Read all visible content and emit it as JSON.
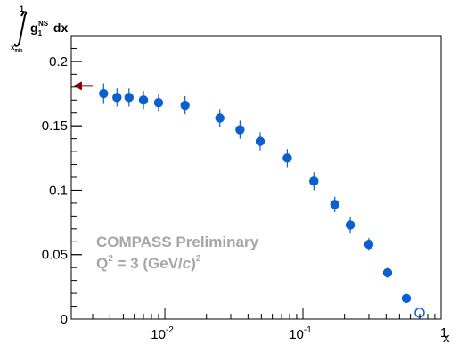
{
  "chart_data": {
    "type": "scatter",
    "x_scale": "log",
    "xlim": [
      0.0021,
      1
    ],
    "ylim": [
      0,
      0.22
    ],
    "x_ticks": [
      {
        "value": 0.01,
        "base": "10",
        "exp": "-2"
      },
      {
        "value": 0.1,
        "base": "10",
        "exp": "-1"
      },
      {
        "value": 1,
        "base": "",
        "exp": "1"
      }
    ],
    "y_ticks": [
      {
        "value": 0,
        "label": "0"
      },
      {
        "value": 0.05,
        "label": "0.05"
      },
      {
        "value": 0.1,
        "label": "0.1"
      },
      {
        "value": 0.15,
        "label": "0.15"
      },
      {
        "value": 0.2,
        "label": "0.2"
      }
    ],
    "xlabel": "x",
    "ylabel": {
      "integral_upper": "1",
      "integral_lower_base": "x",
      "integral_lower_sub": "min",
      "integrand_base": "g",
      "integrand_sub": "1",
      "integrand_sup": "NS",
      "dx": " dx"
    },
    "annotation": {
      "line1": "COMPASS Preliminary",
      "line2_base": "Q",
      "line2_sup": "2",
      "line2_mid": " = 3 (GeV/",
      "line2_c": "c",
      "line2_close": ")",
      "line2_sup2": "2"
    },
    "series": [
      {
        "marker": "filled-circle",
        "color": "#0b5fcf",
        "points": [
          {
            "x": 0.0036,
            "y": 0.175,
            "err": 0.008
          },
          {
            "x": 0.0045,
            "y": 0.172,
            "err": 0.007
          },
          {
            "x": 0.0055,
            "y": 0.172,
            "err": 0.007
          },
          {
            "x": 0.007,
            "y": 0.17,
            "err": 0.007
          },
          {
            "x": 0.009,
            "y": 0.168,
            "err": 0.007
          },
          {
            "x": 0.014,
            "y": 0.166,
            "err": 0.007
          },
          {
            "x": 0.025,
            "y": 0.156,
            "err": 0.007
          },
          {
            "x": 0.035,
            "y": 0.147,
            "err": 0.007
          },
          {
            "x": 0.049,
            "y": 0.138,
            "err": 0.007
          },
          {
            "x": 0.077,
            "y": 0.125,
            "err": 0.007
          },
          {
            "x": 0.12,
            "y": 0.107,
            "err": 0.007
          },
          {
            "x": 0.17,
            "y": 0.089,
            "err": 0.006
          },
          {
            "x": 0.22,
            "y": 0.073,
            "err": 0.006
          },
          {
            "x": 0.3,
            "y": 0.058,
            "err": 0.005
          },
          {
            "x": 0.41,
            "y": 0.036,
            "err": 0.004
          },
          {
            "x": 0.56,
            "y": 0.016,
            "err": 0.002
          }
        ]
      },
      {
        "marker": "open-circle",
        "color": "#0b5fcf",
        "points": [
          {
            "x": 0.7,
            "y": 0.005,
            "err": 0
          }
        ]
      }
    ],
    "reference_arrow": {
      "y": 0.181,
      "color": "#8b0000"
    },
    "grid": false
  }
}
